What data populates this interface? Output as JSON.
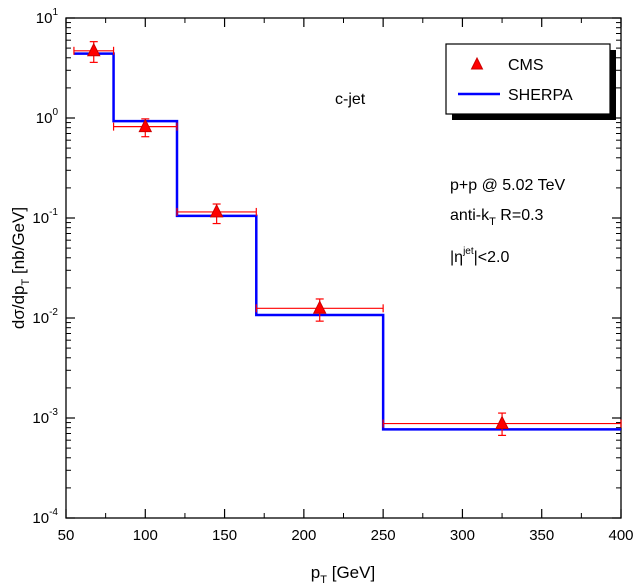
{
  "chart_data": {
    "type": "line",
    "xlabel": {
      "main": "p",
      "sub": "T",
      "unit": " [GeV]"
    },
    "ylabel": {
      "main": "dσ/dp",
      "sub": "T",
      "unit": " [nb/GeV]"
    },
    "xlim": [
      50,
      400
    ],
    "ylim": [
      0.0001,
      10
    ],
    "yscale": "log",
    "xticks": [
      50,
      100,
      150,
      200,
      250,
      300,
      350,
      400
    ],
    "yticks": [
      {
        "value": 0.0001,
        "base": "10",
        "exp": "-4"
      },
      {
        "value": 0.001,
        "base": "10",
        "exp": "-3"
      },
      {
        "value": 0.01,
        "base": "10",
        "exp": "-2"
      },
      {
        "value": 0.1,
        "base": "10",
        "exp": "-1"
      },
      {
        "value": 1,
        "base": "10",
        "exp": "0"
      },
      {
        "value": 10,
        "base": "10",
        "exp": "1"
      }
    ],
    "grid": false,
    "legend_position": "top-right",
    "series": [
      {
        "name": "CMS",
        "style": "markers-with-errorbars",
        "color": "#ff0000",
        "marker": "triangle",
        "points": [
          {
            "x": 67.5,
            "x_lo": 55,
            "x_hi": 80,
            "y": 4.7,
            "y_lo": 3.6,
            "y_hi": 5.8
          },
          {
            "x": 100,
            "x_lo": 80,
            "x_hi": 120,
            "y": 0.82,
            "y_lo": 0.65,
            "y_hi": 0.98
          },
          {
            "x": 145,
            "x_lo": 120,
            "x_hi": 170,
            "y": 0.115,
            "y_lo": 0.088,
            "y_hi": 0.138
          },
          {
            "x": 210,
            "x_lo": 170,
            "x_hi": 250,
            "y": 0.0125,
            "y_lo": 0.0093,
            "y_hi": 0.0155
          },
          {
            "x": 325,
            "x_lo": 250,
            "x_hi": 400,
            "y": 0.00088,
            "y_lo": 0.00067,
            "y_hi": 0.00112
          }
        ]
      },
      {
        "name": "SHERPA",
        "style": "step",
        "color": "#0000ff",
        "bins": [
          {
            "x_lo": 55,
            "x_hi": 80,
            "y": 4.4
          },
          {
            "x_lo": 80,
            "x_hi": 120,
            "y": 0.93
          },
          {
            "x_lo": 120,
            "x_hi": 170,
            "y": 0.105
          },
          {
            "x_lo": 170,
            "x_hi": 250,
            "y": 0.0107
          },
          {
            "x_lo": 250,
            "x_hi": 400,
            "y": 0.00077
          }
        ]
      }
    ],
    "annotations": {
      "jet_type": "c-jet",
      "system": "p+p @ 5.02 TeV",
      "algo": {
        "main": "anti-k",
        "sub": "T",
        "rest": " R=0.3"
      },
      "eta_cut": {
        "open": "|η",
        "sup": "jet",
        "close": "|<2.0"
      }
    }
  }
}
